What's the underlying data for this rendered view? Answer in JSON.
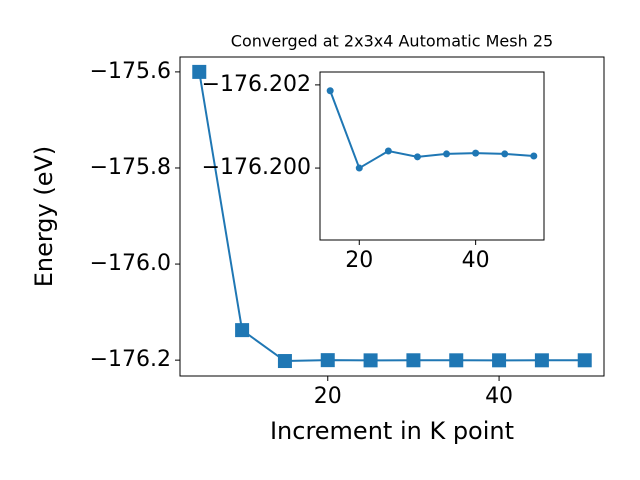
{
  "chart_data": [
    {
      "type": "line",
      "title": "Converged at 2x3x4 Automatic Mesh 25",
      "x_label": "Increment in K point",
      "y_label": "Energy (eV)",
      "x": [
        5,
        10,
        15,
        20,
        25,
        30,
        35,
        40,
        45,
        50
      ],
      "series": [
        {
          "color": "#1f77b4",
          "marker": "square",
          "values": [
            -175.6,
            -176.1375,
            -176.20186,
            -176.2,
            -176.20041,
            -176.20027,
            -176.20034,
            -176.20036,
            -176.20034,
            -176.20029
          ]
        }
      ],
      "xlim": [
        2.75,
        52.25
      ],
      "ylim": [
        -176.233,
        -175.569
      ],
      "xticks": [
        20,
        40
      ],
      "yticks": [
        {
          "value": -175.6,
          "label": "−175.6"
        },
        {
          "value": -175.8,
          "label": "−175.8"
        },
        {
          "value": -176.0,
          "label": "−176.0"
        },
        {
          "value": -176.2,
          "label": "−176.2"
        }
      ],
      "grid": false
    },
    {
      "type": "line",
      "x": [
        15,
        20,
        25,
        30,
        35,
        40,
        45,
        50
      ],
      "series": [
        {
          "color": "#1f77b4",
          "marker": "circle",
          "values": [
            -176.20186,
            -176.2,
            -176.20041,
            -176.20027,
            -176.20034,
            -176.20036,
            -176.20034,
            -176.20029
          ]
        }
      ],
      "xlim": [
        13.25,
        51.75
      ],
      "ylim": [
        -176.19827,
        -176.20231
      ],
      "xticks": [
        20,
        40
      ],
      "yticks": [
        {
          "value": -176.202,
          "label": "−176.202"
        },
        {
          "value": -176.2,
          "label": "−176.200"
        }
      ],
      "grid": false
    }
  ]
}
